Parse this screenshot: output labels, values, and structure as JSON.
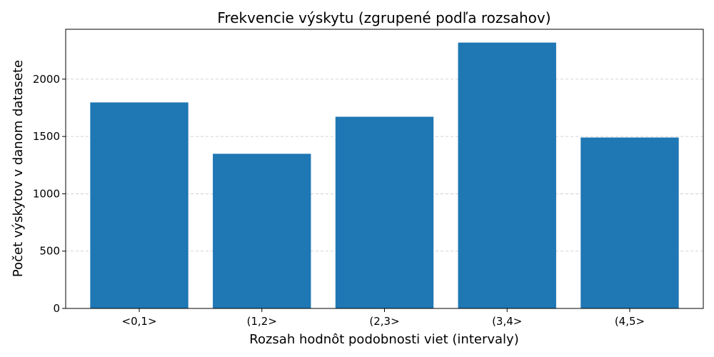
{
  "chart_data": {
    "type": "bar",
    "title": "Frekvencie výskytu (zgrupené podľa rozsahov)",
    "xlabel": "Rozsah hodnôt podobnosti viet (intervaly)",
    "ylabel": "Počet výskytov v danom datasete",
    "categories": [
      "<0,1>",
      "(1,2>",
      "(2,3>",
      "(3,4>",
      "(4,5>"
    ],
    "values": [
      1797,
      1349,
      1672,
      2319,
      1491
    ],
    "ylim": [
      0,
      2435
    ],
    "yticks": [
      0,
      500,
      1000,
      1500,
      2000
    ],
    "grid": "y-dashed",
    "bar_color": "#1f77b4"
  }
}
